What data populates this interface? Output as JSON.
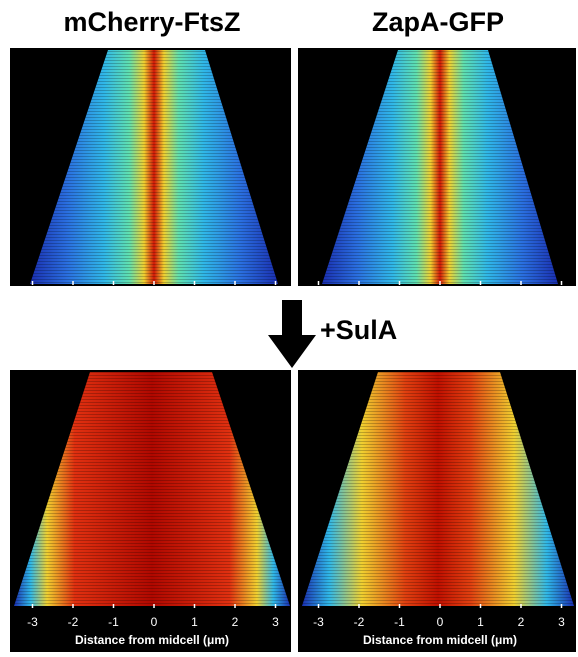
{
  "panels": {
    "titles": [
      "mCherry-FtsZ",
      "ZapA-GFP"
    ]
  },
  "treatment": "+SulA",
  "axis": {
    "label": "Distance from midcell (μm)",
    "ticks": [
      -3,
      -2,
      -1,
      0,
      1,
      2,
      3
    ]
  }
}
